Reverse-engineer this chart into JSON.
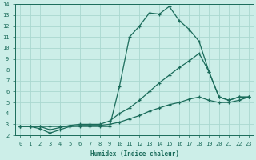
{
  "xlabel": "Humidex (Indice chaleur)",
  "bg_color": "#cceee8",
  "grid_color": "#aad8d0",
  "line_color": "#1a6b5a",
  "xlim": [
    -0.5,
    23.5
  ],
  "ylim": [
    2,
    14
  ],
  "xticks": [
    0,
    1,
    2,
    3,
    4,
    5,
    6,
    7,
    8,
    9,
    10,
    11,
    12,
    13,
    14,
    15,
    16,
    17,
    18,
    19,
    20,
    21,
    22,
    23
  ],
  "yticks": [
    2,
    3,
    4,
    5,
    6,
    7,
    8,
    9,
    10,
    11,
    12,
    13,
    14
  ],
  "series": [
    {
      "x": [
        0,
        1,
        2,
        3,
        4,
        5,
        6,
        7,
        8,
        9,
        10,
        11,
        12,
        13,
        14,
        15,
        16,
        17,
        18,
        19,
        20,
        21,
        22,
        23
      ],
      "y": [
        2.8,
        2.8,
        2.6,
        2.2,
        2.5,
        2.8,
        2.8,
        2.8,
        2.8,
        2.8,
        6.5,
        11.0,
        12.0,
        13.2,
        13.1,
        13.8,
        12.5,
        11.7,
        10.6,
        7.8,
        5.5,
        5.2,
        5.5,
        5.5
      ]
    },
    {
      "x": [
        0,
        1,
        2,
        3,
        4,
        5,
        6,
        7,
        8,
        9,
        10,
        11,
        12,
        13,
        14,
        15,
        16,
        17,
        18,
        19,
        20,
        21,
        22,
        23
      ],
      "y": [
        2.8,
        2.8,
        2.8,
        2.5,
        2.7,
        2.9,
        3.0,
        3.0,
        3.0,
        3.3,
        4.0,
        4.5,
        5.2,
        6.0,
        6.8,
        7.5,
        8.2,
        8.8,
        9.5,
        7.8,
        5.5,
        5.2,
        5.5,
        5.5
      ]
    },
    {
      "x": [
        0,
        1,
        2,
        3,
        4,
        5,
        6,
        7,
        8,
        9,
        10,
        11,
        12,
        13,
        14,
        15,
        16,
        17,
        18,
        19,
        20,
        21,
        22,
        23
      ],
      "y": [
        2.8,
        2.8,
        2.8,
        2.8,
        2.8,
        2.8,
        2.9,
        2.9,
        2.9,
        3.0,
        3.2,
        3.5,
        3.8,
        4.2,
        4.5,
        4.8,
        5.0,
        5.3,
        5.5,
        5.2,
        5.0,
        5.0,
        5.2,
        5.5
      ]
    }
  ]
}
